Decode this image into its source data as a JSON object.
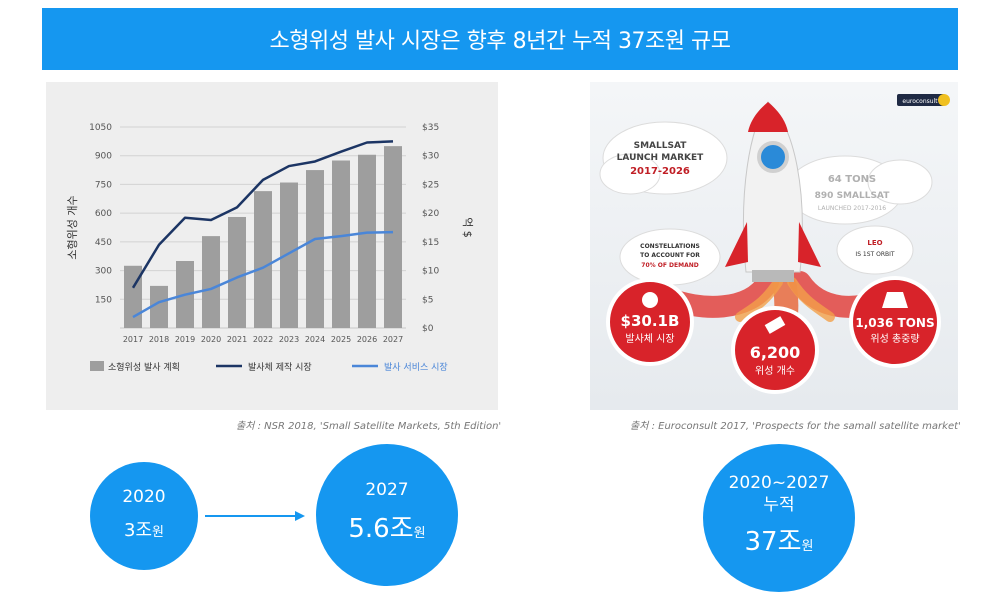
{
  "banner": {
    "title": "소형위성 발사 시장은 향후 8년간 누적 37조원 규모"
  },
  "chart_data": {
    "type": "bar",
    "categories": [
      "2017",
      "2018",
      "2019",
      "2020",
      "2021",
      "2022",
      "2023",
      "2024",
      "2025",
      "2026",
      "2027"
    ],
    "ylabel": "소형위성 개수",
    "y2label": "억 $",
    "ylim": [
      0,
      1050
    ],
    "y2lim": [
      0,
      35
    ],
    "yticks": [
      "150",
      "300",
      "450",
      "600",
      "750",
      "900",
      "1050"
    ],
    "y2ticks": [
      "$0",
      "$5",
      "$10",
      "$15",
      "$20",
      "$25",
      "$30",
      "$35"
    ],
    "grid": true,
    "legend_position": "bottom",
    "series": [
      {
        "name": "소형위성 발사 계획",
        "kind": "bar",
        "axis": "left",
        "color": "#9e9e9e",
        "values": [
          325,
          220,
          350,
          480,
          580,
          715,
          760,
          825,
          875,
          905,
          950
        ]
      },
      {
        "name": "발사체 제작 시장",
        "kind": "line",
        "axis": "right",
        "color": "#1c3564",
        "values": [
          7.0,
          14.5,
          19.2,
          18.8,
          21.0,
          25.8,
          28.2,
          29.0,
          30.7,
          32.3,
          32.5
        ]
      },
      {
        "name": "발사 서비스 시장",
        "kind": "line",
        "axis": "right",
        "color": "#4a86d8",
        "values": [
          1.9,
          4.5,
          5.8,
          6.8,
          8.8,
          10.5,
          13.0,
          15.5,
          16.0,
          16.6,
          16.7
        ]
      }
    ]
  },
  "sources": {
    "left": "출처 : NSR 2018, 'Small Satellite Markets, 5th Edition'",
    "right": "출처 : Euroconsult 2017, 'Prospects for the samall satellite market'"
  },
  "infographic": {
    "badge": "euroconsult",
    "cloud_title": [
      "SMALLSAT",
      "LAUNCH MARKET",
      "2017-2026"
    ],
    "tons_top": "64 TONS",
    "smallsat_line1": "890 SMALLSAT",
    "smallsat_line2": "LAUNCHED 2017-2016",
    "constellations": [
      "CONSTELLATIONS",
      "TO ACCOUNT FOR",
      "70% OF DEMAND"
    ],
    "leo": [
      "LEO",
      "IS 1ST ORBIT"
    ],
    "value1": "$30.1B",
    "value1_label": "발사체 시장",
    "value2": "6,200",
    "value2_label": "위성 개수",
    "value3": "1,036 TONS",
    "value3_label": "위성 총중량",
    "colors": {
      "red": "#d8232a",
      "dark_red": "#a81820"
    }
  },
  "circles": {
    "c2020": {
      "year": "2020",
      "value": "3조",
      "unit": "원"
    },
    "c2027": {
      "year": "2027",
      "value": "5.6조",
      "unit": "원"
    },
    "ctotal": {
      "line1": "2020~2027",
      "line2": "누적",
      "value": "37조",
      "unit": "원"
    }
  },
  "colors": {
    "accent": "#1597f0"
  }
}
